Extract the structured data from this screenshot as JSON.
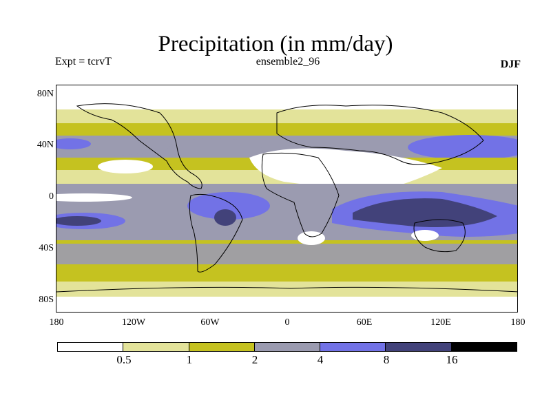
{
  "header": {
    "title": "Precipitation (in mm/day)",
    "left_label": "Expt = tcrvT",
    "center_label": "ensemble2_96",
    "right_label": "DJF"
  },
  "axes": {
    "y_ticks": [
      "80N",
      "40N",
      "0",
      "40S",
      "80S"
    ],
    "x_ticks": [
      "180",
      "120W",
      "60W",
      "0",
      "60E",
      "120E",
      "180"
    ]
  },
  "colorbar": {
    "labels": [
      "0.5",
      "1",
      "2",
      "4",
      "8",
      "16"
    ],
    "colors": [
      "#ffffff",
      "#e3e39a",
      "#c5c220",
      "#9b9bb0",
      "#7272e6",
      "#42427a",
      "#000000"
    ]
  }
}
